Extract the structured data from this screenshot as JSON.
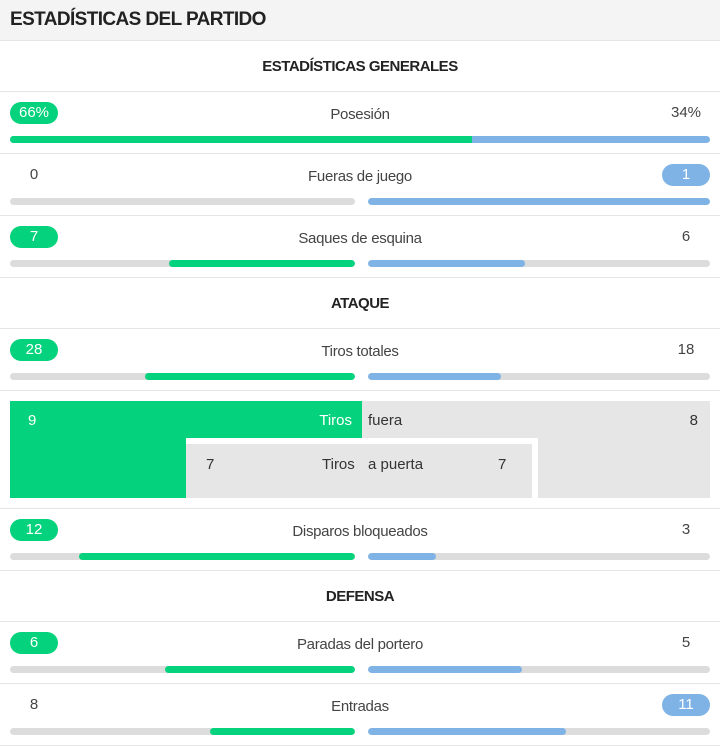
{
  "header": {
    "title": "ESTADÍSTICAS DEL PARTIDO"
  },
  "sections": {
    "general": "ESTADÍSTICAS GENERALES",
    "attack": "ATAQUE",
    "defense": "DEFENSA"
  },
  "colors": {
    "home": "#05d27c",
    "away": "#7fb3e6",
    "track": "#dcdcdc"
  },
  "stats": {
    "possession": {
      "label": "Posesión",
      "home": "66%",
      "away": "34%",
      "home_share": 0.66
    },
    "offsides": {
      "label": "Fueras de juego",
      "home": "0",
      "away": "1",
      "home_share": 0.0,
      "away_share": 1.0
    },
    "corners": {
      "label": "Saques de esquina",
      "home": "7",
      "away": "6",
      "home_share": 0.54,
      "away_share": 0.46
    },
    "total_shots": {
      "label": "Tiros totales",
      "home": "28",
      "away": "18",
      "home_share": 0.61,
      "away_share": 0.39
    },
    "blocked_shots": {
      "label": "Disparos bloqueados",
      "home": "12",
      "away": "3",
      "home_share": 0.8,
      "away_share": 0.2
    },
    "saves": {
      "label": "Paradas del portero",
      "home": "6",
      "away": "5",
      "home_share": 0.55,
      "away_share": 0.45
    },
    "tackles": {
      "label": "Entradas",
      "home": "8",
      "away": "11",
      "home_share": 0.42,
      "away_share": 0.58
    }
  },
  "shots_breakdown": {
    "off_target": {
      "label_left": "Tiros",
      "label_right": "fuera",
      "home": "9",
      "away": "8"
    },
    "on_target": {
      "label_left": "Tiros",
      "label_right": "a puerta",
      "home": "7",
      "away": "7"
    }
  }
}
